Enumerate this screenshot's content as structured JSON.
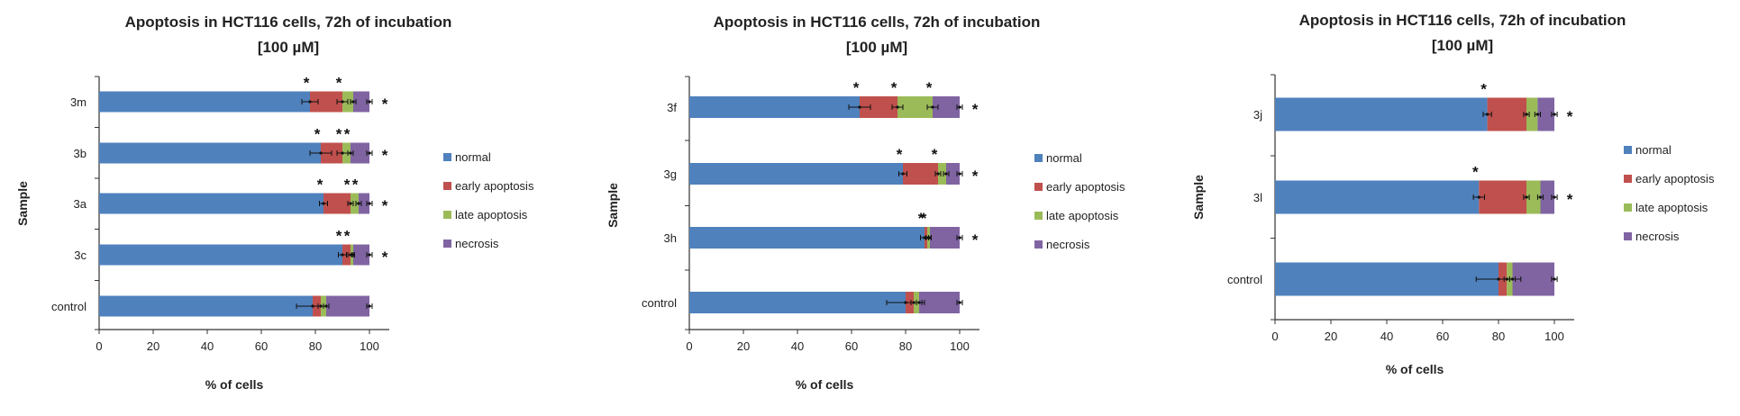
{
  "colors": {
    "normal": "#4f81bd",
    "early_apoptosis": "#c0504d",
    "late_apoptosis": "#9bbb59",
    "necrosis": "#8064a2"
  },
  "chart_data": [
    {
      "type": "bar",
      "stacked": true,
      "orientation": "horizontal",
      "title": "Apoptosis in HCT116 cells, 72h of incubation",
      "subtitle": "[100 µM]",
      "xlabel": "% of cells",
      "ylabel": "Sample",
      "xlim": [
        0,
        100
      ],
      "xticks": [
        "0",
        "20",
        "40",
        "60",
        "80",
        "100"
      ],
      "legend_position": "right",
      "categories": [
        "3m",
        "3b",
        "3a",
        "3c",
        "control"
      ],
      "series": [
        {
          "name": "normal",
          "values": [
            78,
            82,
            83,
            90,
            79
          ],
          "errors": [
            3,
            4,
            1.5,
            1.5,
            6
          ]
        },
        {
          "name": "early apoptosis",
          "values": [
            12,
            8,
            10,
            3,
            3
          ],
          "errors": [
            2,
            2,
            1,
            1,
            1
          ]
        },
        {
          "name": "late apoptosis",
          "values": [
            4,
            3,
            3,
            1,
            2
          ],
          "errors": [
            1,
            1,
            1,
            0.5,
            1
          ]
        },
        {
          "name": "necrosis",
          "values": [
            6,
            7,
            4,
            6,
            16
          ],
          "errors": [
            1,
            1,
            1,
            1,
            1
          ]
        }
      ],
      "significance": [
        {
          "category": "3m",
          "markers": [
            "*",
            "*",
            "*"
          ]
        },
        {
          "category": "3b",
          "markers": [
            "*",
            "*",
            "*",
            "*"
          ]
        },
        {
          "category": "3a",
          "markers": [
            "*",
            "*",
            "*",
            "*"
          ]
        },
        {
          "category": "3c",
          "markers": [
            "*",
            "*",
            "*"
          ]
        },
        {
          "category": "control",
          "markers": []
        }
      ]
    },
    {
      "type": "bar",
      "stacked": true,
      "orientation": "horizontal",
      "title": "Apoptosis in HCT116 cells, 72h of incubation",
      "subtitle": "[100 µM]",
      "xlabel": "% of cells",
      "ylabel": "Sample",
      "xlim": [
        0,
        100
      ],
      "xticks": [
        "0",
        "20",
        "40",
        "60",
        "80",
        "100"
      ],
      "legend_position": "right",
      "categories": [
        "3f",
        "3g",
        "3h",
        "control"
      ],
      "series": [
        {
          "name": "normal",
          "values": [
            63,
            79,
            87,
            80
          ],
          "errors": [
            4,
            1.5,
            1.5,
            7
          ]
        },
        {
          "name": "early apoptosis",
          "values": [
            14,
            13,
            1,
            3
          ],
          "errors": [
            2,
            1,
            0.5,
            1
          ]
        },
        {
          "name": "late apoptosis",
          "values": [
            13,
            3,
            1,
            2
          ],
          "errors": [
            2,
            1,
            0.5,
            1
          ]
        },
        {
          "name": "necrosis",
          "values": [
            10,
            5,
            11,
            15
          ],
          "errors": [
            1,
            1,
            1,
            1
          ]
        }
      ],
      "significance": [
        {
          "category": "3f",
          "markers": [
            "*",
            "*",
            "*",
            "*"
          ]
        },
        {
          "category": "3g",
          "markers": [
            "*",
            "*",
            "*"
          ]
        },
        {
          "category": "3h",
          "markers": [
            "*",
            "*",
            "*"
          ]
        },
        {
          "category": "control",
          "markers": []
        }
      ]
    },
    {
      "type": "bar",
      "stacked": true,
      "orientation": "horizontal",
      "title": "Apoptosis in HCT116 cells, 72h of incubation",
      "subtitle": "[100 µM]",
      "xlabel": "% of cells",
      "ylabel": "Sample",
      "xlim": [
        0,
        100
      ],
      "xticks": [
        "0",
        "20",
        "40",
        "60",
        "80",
        "100"
      ],
      "legend_position": "right",
      "categories": [
        "3j",
        "3l",
        "control"
      ],
      "series": [
        {
          "name": "normal",
          "values": [
            76,
            73,
            80
          ],
          "errors": [
            1.5,
            2,
            8
          ]
        },
        {
          "name": "early apoptosis",
          "values": [
            14,
            17,
            3
          ],
          "errors": [
            1,
            1,
            1
          ]
        },
        {
          "name": "late apoptosis",
          "values": [
            4,
            5,
            2
          ],
          "errors": [
            1,
            1,
            1
          ]
        },
        {
          "name": "necrosis",
          "values": [
            6,
            5,
            15
          ],
          "errors": [
            1,
            1,
            1
          ]
        }
      ],
      "significance": [
        {
          "category": "3j",
          "markers": [
            "*",
            "*"
          ]
        },
        {
          "category": "3l",
          "markers": [
            "*",
            "*"
          ]
        },
        {
          "category": "control",
          "markers": []
        }
      ]
    }
  ]
}
